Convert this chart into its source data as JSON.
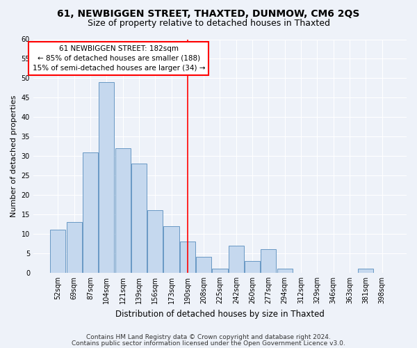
{
  "title": "61, NEWBIGGEN STREET, THAXTED, DUNMOW, CM6 2QS",
  "subtitle": "Size of property relative to detached houses in Thaxted",
  "xlabel": "Distribution of detached houses by size in Thaxted",
  "ylabel": "Number of detached properties",
  "categories": [
    "52sqm",
    "69sqm",
    "87sqm",
    "104sqm",
    "121sqm",
    "139sqm",
    "156sqm",
    "173sqm",
    "190sqm",
    "208sqm",
    "225sqm",
    "242sqm",
    "260sqm",
    "277sqm",
    "294sqm",
    "312sqm",
    "329sqm",
    "346sqm",
    "363sqm",
    "381sqm",
    "398sqm"
  ],
  "values": [
    11,
    13,
    31,
    49,
    32,
    28,
    16,
    12,
    8,
    4,
    1,
    7,
    3,
    6,
    1,
    0,
    0,
    0,
    0,
    1,
    0
  ],
  "bar_color": "#c5d8ee",
  "bar_edge_color": "#6898c4",
  "vline_color": "red",
  "vline_x": 8.0,
  "annotation_line1": "61 NEWBIGGEN STREET: 182sqm",
  "annotation_line2": "← 85% of detached houses are smaller (188)",
  "annotation_line3": "15% of semi-detached houses are larger (34) →",
  "annotation_box_color": "white",
  "annotation_box_edge": "red",
  "ylim": [
    0,
    60
  ],
  "yticks": [
    0,
    5,
    10,
    15,
    20,
    25,
    30,
    35,
    40,
    45,
    50,
    55,
    60
  ],
  "footer1": "Contains HM Land Registry data © Crown copyright and database right 2024.",
  "footer2": "Contains public sector information licensed under the Open Government Licence v3.0.",
  "background_color": "#eef2f9",
  "grid_color": "#ffffff",
  "title_fontsize": 10,
  "subtitle_fontsize": 9,
  "xlabel_fontsize": 8.5,
  "ylabel_fontsize": 8,
  "tick_fontsize": 7,
  "annotation_fontsize": 7.5,
  "footer_fontsize": 6.5
}
